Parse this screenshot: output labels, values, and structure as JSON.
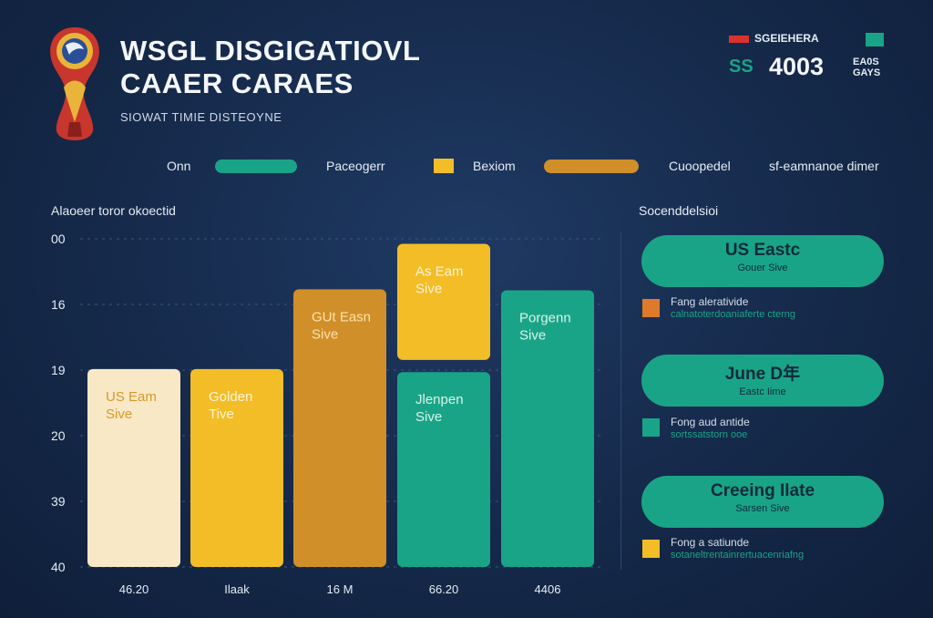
{
  "header": {
    "title_line1": "WSGL DISGIGATIOVL",
    "title_line2": "CAAER CARAES",
    "subtitle": "SIOWAT TIMIE DISTEOYNE"
  },
  "top_right": {
    "label": "SGEIEHERA",
    "code": "SS",
    "number": "4003",
    "small_text": "EA0S GAYS",
    "flag_color": "#d9322e",
    "teal_color": "#1aa487"
  },
  "legend": {
    "items": [
      {
        "label": "Onn",
        "color": "#1aa487"
      },
      {
        "label": "Paceogerr",
        "color": "#f3bd28"
      },
      {
        "label": "Bexiom",
        "color": "#d08f28"
      },
      {
        "label": "Cuoopedel",
        "color": null
      },
      {
        "label": "sf-eamnanoe dimer",
        "color": null
      }
    ]
  },
  "chart_data": {
    "type": "bar",
    "ylabel": "Alaoeer toror okoectid",
    "y_ticks": [
      "00",
      "16",
      "19",
      "20",
      "39",
      "40"
    ],
    "categories": [
      "46.20",
      "Ilaak",
      "16 M",
      "66.20",
      "4406"
    ],
    "bars": [
      {
        "category": "46.20",
        "label_line1": "US Eam",
        "label_line2": "Sive",
        "color": "#f8e8c6",
        "text_color": "#d7992a",
        "bottom": 0,
        "top": 1.96
      },
      {
        "category": "Ilaak",
        "label_line1": "Golden",
        "label_line2": "Tive",
        "color": "#f3bd28",
        "text_color": "#fff4d6",
        "bottom": 0,
        "top": 1.96
      },
      {
        "category": "16 M",
        "label_line1": "GUt Easn",
        "label_line2": "Sive",
        "color": "#d08f28",
        "text_color": "#fde2ad",
        "bottom": 0,
        "top": 2.75
      },
      {
        "category": "66.20",
        "label_line1": "As Eam",
        "label_line2": "Sive",
        "color": "#f3bd28",
        "text_color": "#fff4d6",
        "bottom": 2.05,
        "top": 3.2
      },
      {
        "category": "66.20",
        "label_line1": "Jlenpen",
        "label_line2": "Sive",
        "color": "#1aa487",
        "text_color": "#d7f3ec",
        "bottom": 0,
        "top": 1.93
      },
      {
        "category": "4406",
        "label_line1": "Porgenn",
        "label_line2": "Sive",
        "color": "#1aa487",
        "text_color": "#d7f3ec",
        "bottom": 0,
        "top": 2.74
      }
    ]
  },
  "right_panel": {
    "title": "Socenddelsioi",
    "cards": [
      {
        "title": "US Eastc",
        "sub": "Gouer Sive",
        "note1": "Fang alerativide",
        "note2": "calnatoterdoaniaferte cterng",
        "note_color": "#e07a2b"
      },
      {
        "title": "June D年",
        "sub": "Eastc Iime",
        "note1": "Fong aud antide",
        "note2": "sortssatstorn ooe",
        "note_color": "#1aa487"
      },
      {
        "title": "Creeing Ilate",
        "sub": "Sarsen Sive",
        "note1": "Fong a satiunde",
        "note2": "sotaneltrentainrertuacenriafng",
        "note_color": "#f3bd28"
      }
    ]
  }
}
